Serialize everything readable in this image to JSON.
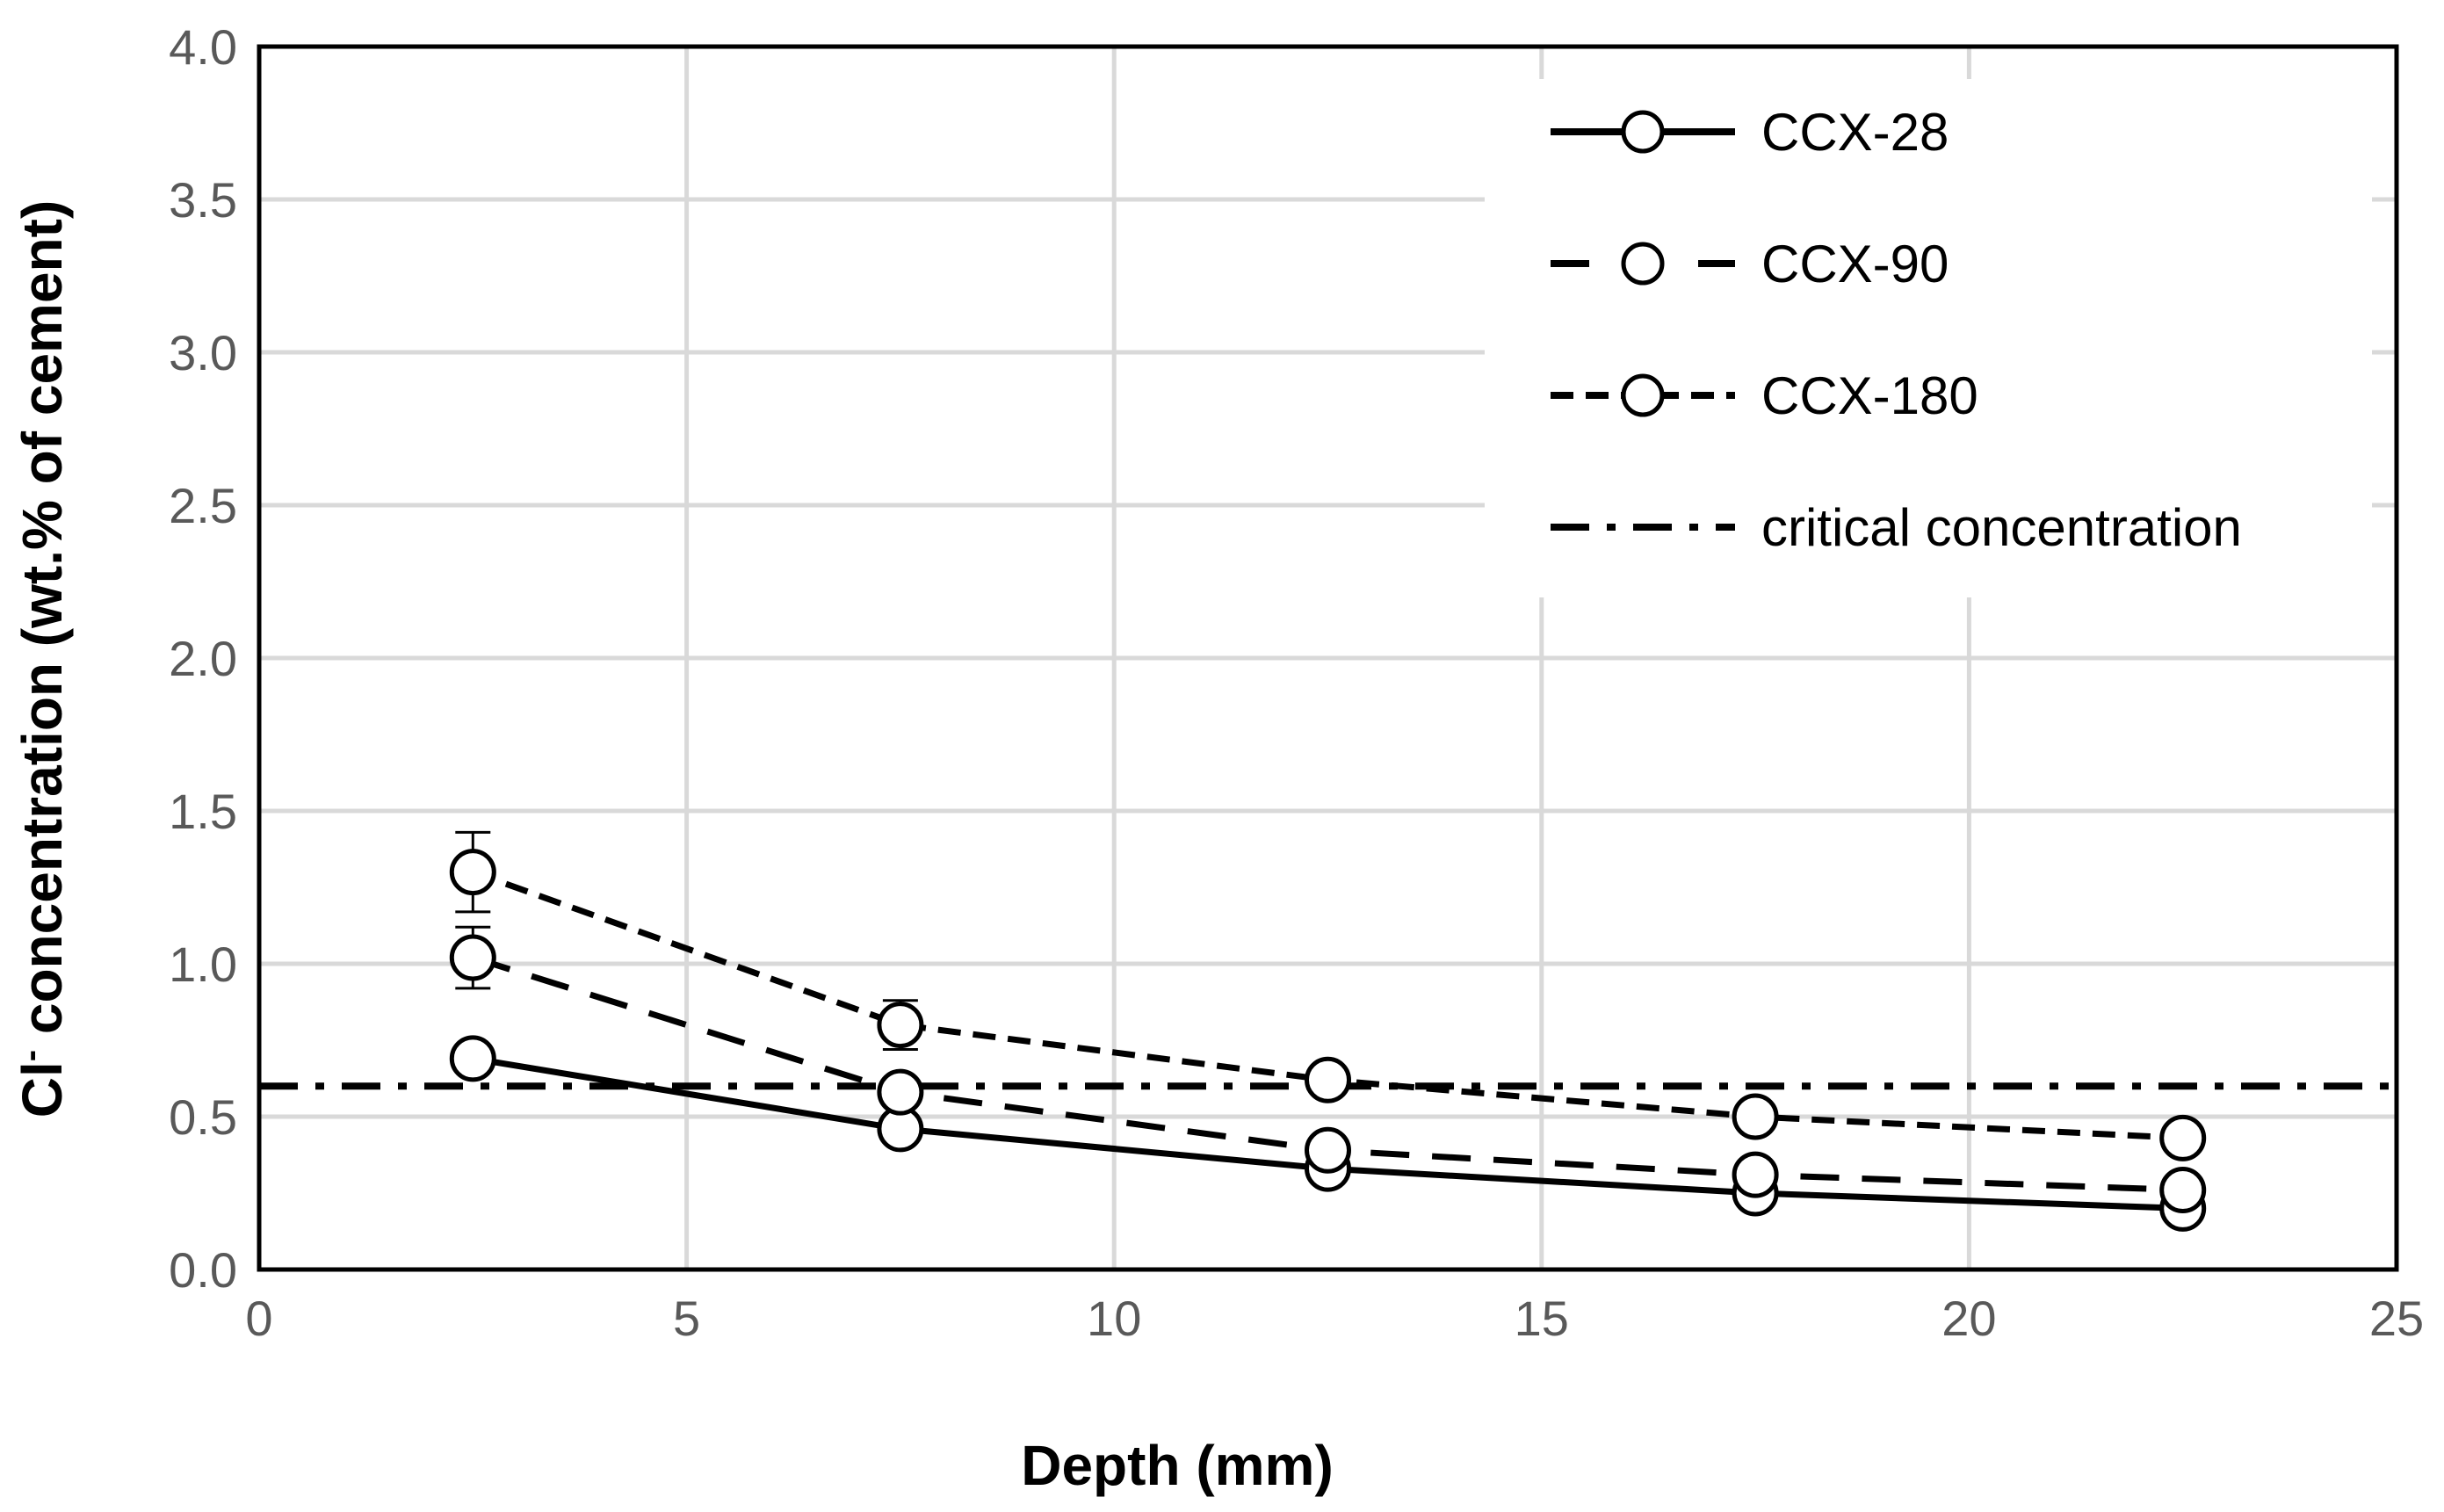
{
  "chart_data": {
    "type": "line",
    "title": "",
    "xlabel": "Depth (mm)",
    "ylabel_main": "Cl",
    "ylabel_sup": "-",
    "ylabel_rest": " concentration (wt.% of cement)",
    "xlim": [
      0,
      25
    ],
    "ylim": [
      0,
      4
    ],
    "xticks": [
      0,
      5,
      10,
      15,
      20,
      25
    ],
    "xtick_labels": [
      "0",
      "5",
      "10",
      "15",
      "20",
      "25"
    ],
    "yticks": [
      0,
      0.5,
      1,
      1.5,
      2,
      2.5,
      3,
      3.5,
      4
    ],
    "ytick_labels": [
      "0.0",
      "0.5",
      "1.0",
      "1.5",
      "2.0",
      "2.5",
      "3.0",
      "3.5",
      "4.0"
    ],
    "grid": true,
    "legend_position": "top-right",
    "x": [
      2.5,
      7.5,
      12.5,
      17.5,
      22.5
    ],
    "series": [
      {
        "name": "CCX-28",
        "style": "solid",
        "values": [
          0.69,
          0.46,
          0.33,
          0.25,
          0.2
        ],
        "errors": [
          0.03,
          0.02,
          0.02,
          0.02,
          0.01
        ]
      },
      {
        "name": "CCX-90",
        "style": "dashed",
        "values": [
          1.02,
          0.58,
          0.39,
          0.31,
          0.26
        ],
        "errors": [
          0.1,
          0.04,
          0.02,
          0.02,
          0.02
        ]
      },
      {
        "name": "CCX-180",
        "style": "short-dashed",
        "values": [
          1.3,
          0.8,
          0.62,
          0.5,
          0.43
        ],
        "errors": [
          0.13,
          0.08,
          0.03,
          0.03,
          0.02
        ]
      }
    ],
    "reference_lines": [
      {
        "name": "critical concentration",
        "style": "dash-dot",
        "y": 0.6
      }
    ]
  }
}
